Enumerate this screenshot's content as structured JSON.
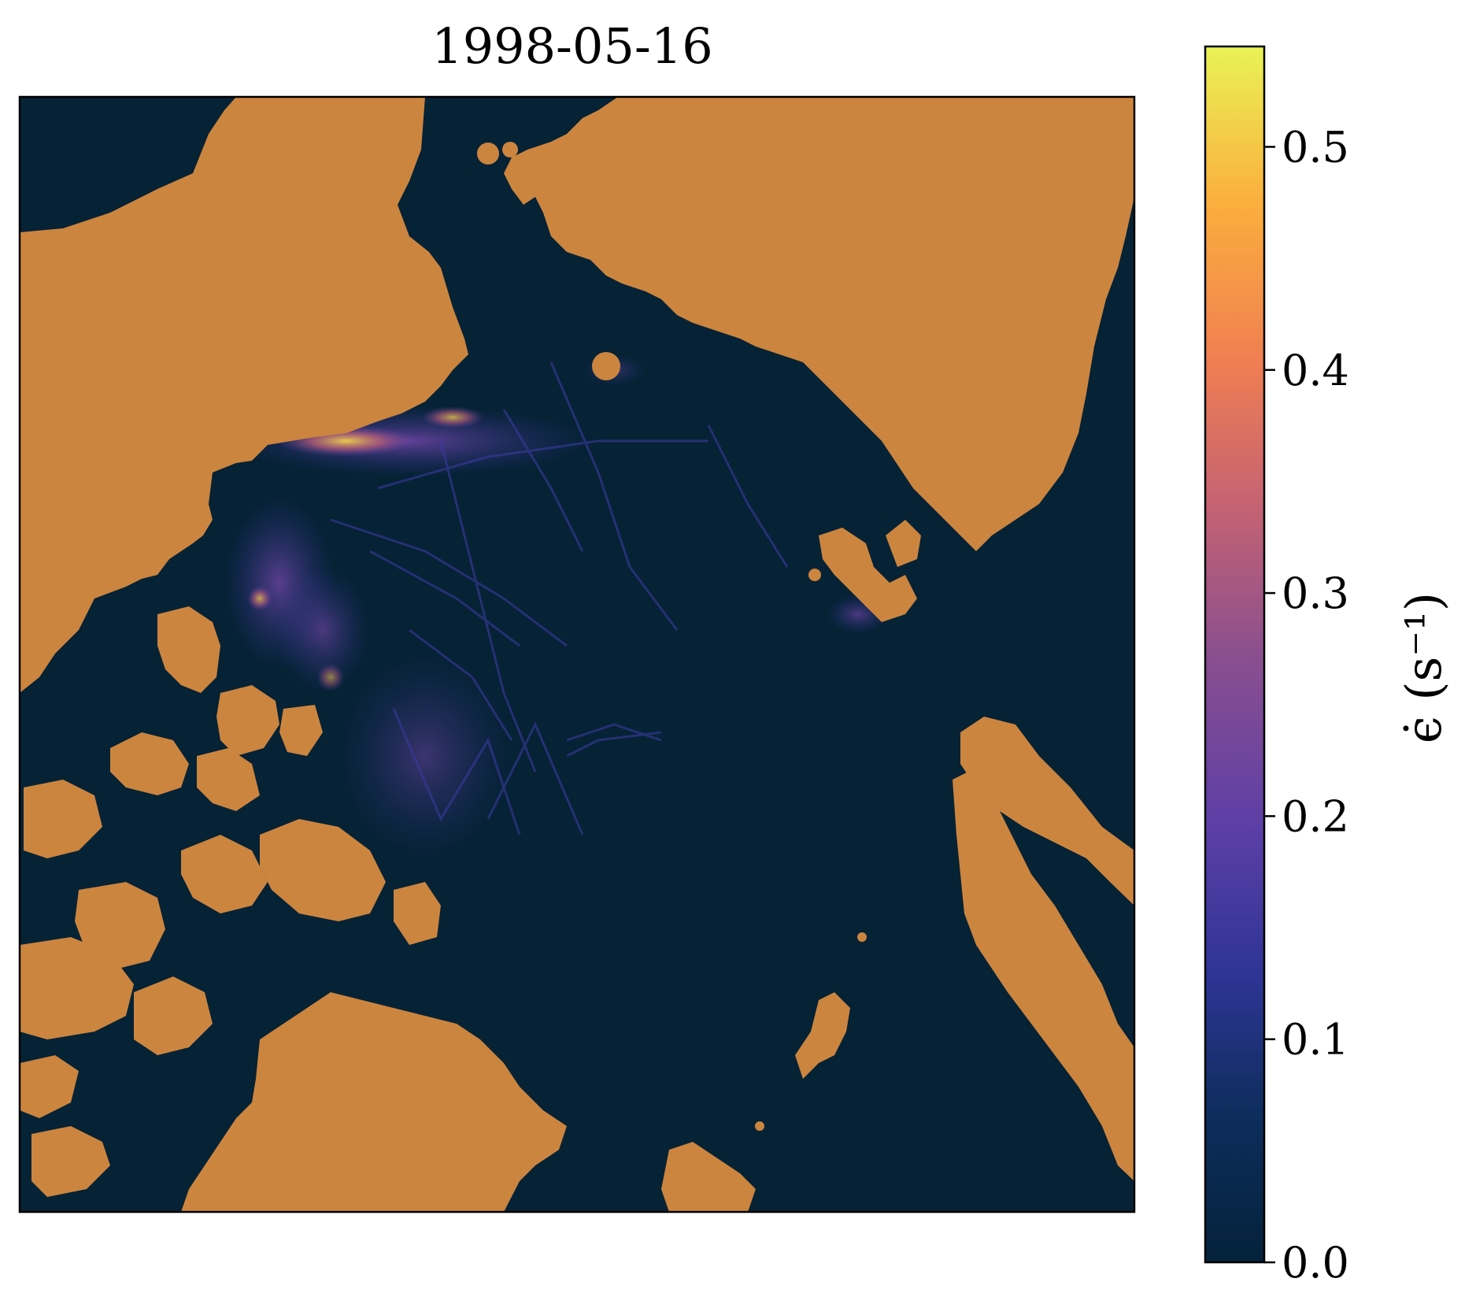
{
  "title": "1998-05-16",
  "colorbar": {
    "label": "ϵ̇ (s⁻¹)",
    "min": 0.0,
    "max": 0.545,
    "ticks": [
      {
        "value": 0.0,
        "label": "0.0"
      },
      {
        "value": 0.1,
        "label": "0.1"
      },
      {
        "value": 0.2,
        "label": "0.2"
      },
      {
        "value": 0.3,
        "label": "0.3"
      },
      {
        "value": 0.4,
        "label": "0.4"
      },
      {
        "value": 0.5,
        "label": "0.5"
      }
    ],
    "colormap": "thermal",
    "colors": [
      "#04223a",
      "#0d2d5c",
      "#2f3596",
      "#5d3fa6",
      "#8b4f8f",
      "#c46273",
      "#ef7e52",
      "#fbae3d",
      "#e9f356"
    ]
  },
  "colors": {
    "ocean": "#062235",
    "land": "#cc853f"
  }
}
